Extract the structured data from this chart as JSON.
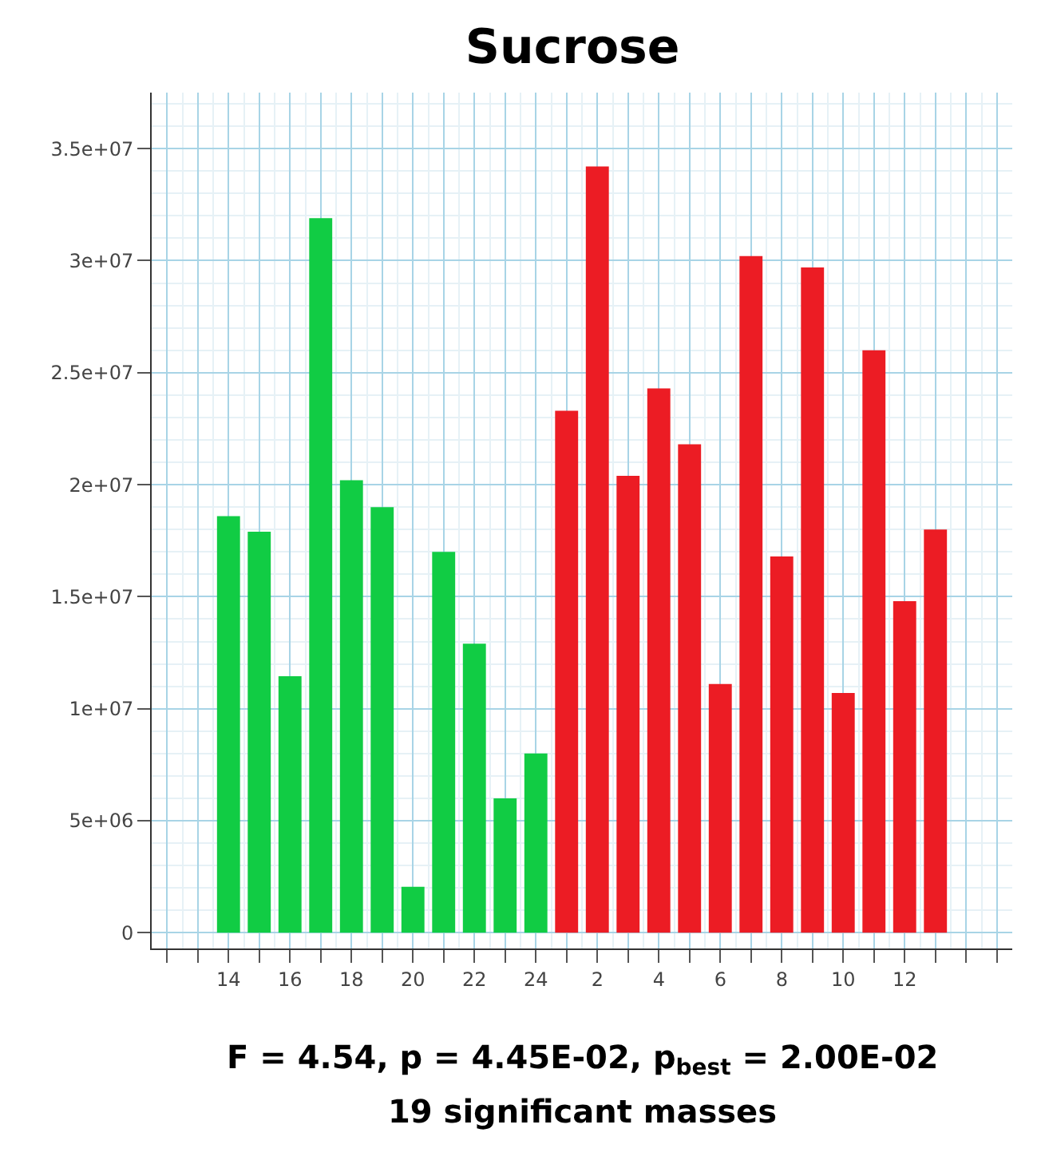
{
  "chart_data": {
    "type": "bar",
    "title": "Sucrose",
    "categories": [
      null,
      null,
      "14",
      null,
      "16",
      null,
      "18",
      null,
      "20",
      null,
      "22",
      null,
      "24",
      null,
      "2",
      null,
      "4",
      null,
      "6",
      null,
      "8",
      null,
      "10",
      null,
      "12",
      null,
      null,
      null
    ],
    "values": [
      null,
      null,
      18600000.0,
      17900000.0,
      11450000.0,
      31900000.0,
      20200000.0,
      19000000.0,
      2050000.0,
      17000000.0,
      12900000.0,
      6000000.0,
      8000000.0,
      23300000.0,
      34200000.0,
      20400000.0,
      24300000.0,
      21800000.0,
      11100000.0,
      30200000.0,
      16800000.0,
      29700000.0,
      10700000.0,
      26000000.0,
      14800000.0,
      18000000.0,
      null,
      null
    ],
    "colors": [
      "#11cc44",
      "#11cc44",
      "#11cc44",
      "#11cc44",
      "#11cc44",
      "#11cc44",
      "#11cc44",
      "#11cc44",
      "#11cc44",
      "#11cc44",
      "#11cc44",
      "#11cc44",
      "#11cc44",
      "#ec1c24",
      "#ec1c24",
      "#ec1c24",
      "#ec1c24",
      "#ec1c24",
      "#ec1c24",
      "#ec1c24",
      "#ec1c24",
      "#ec1c24",
      "#ec1c24",
      "#ec1c24",
      "#ec1c24",
      "#ec1c24",
      "#ec1c24",
      "#ec1c24"
    ],
    "ylim": [
      -700000,
      37500000
    ],
    "yticks": [
      0,
      {
        "value": 5000000,
        "label": "5e+06"
      },
      {
        "value": 10000000,
        "label": "1e+07"
      },
      {
        "value": 15000000,
        "label": "1.5e+07"
      },
      {
        "value": 20000000,
        "label": "2e+07"
      },
      {
        "value": 25000000,
        "label": "2.5e+07"
      },
      {
        "value": 30000000,
        "label": "3e+07"
      },
      {
        "value": 35000000,
        "label": "3.5e+07"
      }
    ],
    "grid": true,
    "annotations": [
      "F = 4.54, p = 4.45E-02, p$_{best}$ = 2.00E-02",
      "19 significant masses"
    ]
  }
}
